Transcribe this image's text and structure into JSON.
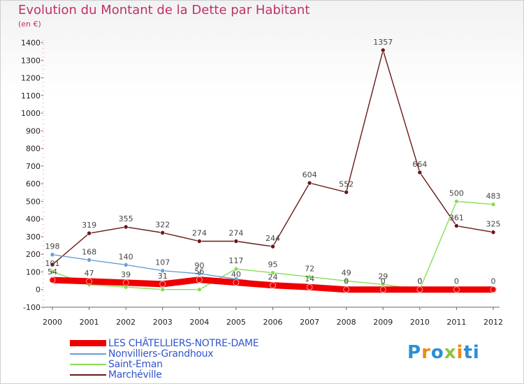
{
  "header": {
    "title": "Evolution du Montant de la Dette par Habitant",
    "unit": "(en €)"
  },
  "logo": {
    "text": "Proxiti"
  },
  "chart_data": {
    "type": "line",
    "x": [
      "2000",
      "2001",
      "2002",
      "2003",
      "2004",
      "2005",
      "2006",
      "2007",
      "2008",
      "2009",
      "2010",
      "2011",
      "2012"
    ],
    "ylim": [
      -100,
      1400
    ],
    "yticks": [
      -100,
      0,
      100,
      200,
      300,
      400,
      500,
      600,
      700,
      800,
      900,
      1000,
      1100,
      1200,
      1300,
      1400
    ],
    "grid": false,
    "legend_position": "bottom-left",
    "series": [
      {
        "name": "LES CHÂTELLIERS-NOTRE-DAME",
        "color": "#ee0000",
        "values": [
          54,
          47,
          39,
          31,
          56,
          40,
          24,
          14,
          0,
          0,
          0,
          0,
          0
        ],
        "labels": [
          "54",
          "47",
          "39",
          "31",
          "56",
          "40",
          "24",
          "14",
          "0",
          "0",
          "0",
          "0",
          "0"
        ]
      },
      {
        "name": "Nonvilliers-Grandhoux",
        "color": "#6a9fd4",
        "values": [
          198,
          168,
          140,
          107,
          90,
          60,
          32,
          14,
          8,
          8,
          8,
          8,
          8
        ],
        "labels": [
          "198",
          "168",
          "140",
          "107",
          "90",
          "",
          "",
          "",
          "",
          "",
          "",
          "",
          ""
        ]
      },
      {
        "name": "Saint-Eman",
        "color": "#88dd55",
        "values": [
          101,
          28,
          14,
          0,
          0,
          117,
          95,
          72,
          49,
          29,
          0,
          500,
          483
        ],
        "labels": [
          "101",
          "",
          "",
          "",
          "",
          "117",
          "95",
          "72",
          "49",
          "29",
          "0",
          "500",
          "483"
        ]
      },
      {
        "name": "Marchéville",
        "color": "#6b1717",
        "values": [
          141,
          319,
          355,
          322,
          274,
          274,
          244,
          604,
          552,
          1357,
          664,
          361,
          325
        ],
        "labels": [
          "",
          "319",
          "355",
          "322",
          "274",
          "274",
          "244",
          "604",
          "552",
          "1357",
          "664",
          "361",
          "325"
        ]
      }
    ]
  }
}
